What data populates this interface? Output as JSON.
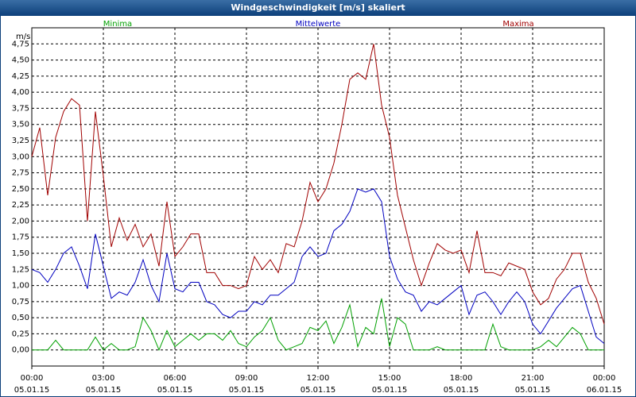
{
  "chart_data": {
    "type": "line",
    "title": "Windgeschwindigkeit [m/s] skaliert",
    "y_unit": "m/s",
    "x": [
      0,
      20,
      40,
      60,
      80,
      100,
      120,
      140,
      160,
      180,
      200,
      220,
      240,
      260,
      280,
      300,
      320,
      340,
      360,
      380,
      400,
      420,
      440,
      460,
      480,
      500,
      520,
      540,
      560,
      580,
      600,
      620,
      640,
      660,
      680,
      700,
      720,
      740,
      760,
      780,
      800,
      820,
      840,
      860,
      880,
      900,
      920,
      940,
      960,
      980,
      1000,
      1020,
      1040,
      1060,
      1080,
      1100,
      1120,
      1140,
      1160,
      1180,
      1200,
      1220,
      1240,
      1260,
      1280,
      1300,
      1320,
      1340,
      1360,
      1380,
      1400,
      1420,
      1440
    ],
    "series": [
      {
        "name": "Minima",
        "color": "#00a000",
        "values": [
          0,
          0,
          0,
          0.15,
          0,
          0,
          0,
          0,
          0.2,
          0,
          0.1,
          0,
          0,
          0.05,
          0.5,
          0.3,
          0,
          0.3,
          0.05,
          0.15,
          0.25,
          0.15,
          0.25,
          0.25,
          0.15,
          0.3,
          0.1,
          0.05,
          0.2,
          0.3,
          0.5,
          0.15,
          0,
          0.05,
          0.1,
          0.35,
          0.3,
          0.45,
          0.1,
          0.35,
          0.7,
          0.05,
          0.35,
          0.25,
          0.8,
          0.05,
          0.5,
          0.4,
          0,
          0,
          0,
          0.05,
          0,
          0,
          0,
          0,
          0,
          0,
          0.4,
          0.05,
          0,
          0,
          0,
          0,
          0.05,
          0.15,
          0.05,
          0.2,
          0.35,
          0.25,
          0,
          0,
          0
        ]
      },
      {
        "name": "Mittelwerte",
        "color": "#0000c0",
        "values": [
          1.25,
          1.2,
          1.05,
          1.25,
          1.5,
          1.6,
          1.3,
          0.95,
          1.8,
          1.3,
          0.8,
          0.9,
          0.85,
          1.05,
          1.4,
          1.0,
          0.75,
          1.5,
          0.95,
          0.9,
          1.05,
          1.05,
          0.75,
          0.7,
          0.55,
          0.5,
          0.6,
          0.6,
          0.75,
          0.7,
          0.85,
          0.85,
          0.95,
          1.05,
          1.45,
          1.6,
          1.45,
          1.5,
          1.85,
          1.95,
          2.15,
          2.5,
          2.45,
          2.5,
          2.3,
          1.45,
          1.1,
          0.9,
          0.85,
          0.6,
          0.75,
          0.7,
          0.8,
          0.9,
          1.0,
          0.55,
          0.85,
          0.9,
          0.75,
          0.55,
          0.75,
          0.9,
          0.75,
          0.4,
          0.25,
          0.45,
          0.65,
          0.8,
          0.95,
          1.0,
          0.6,
          0.2,
          0.1
        ]
      },
      {
        "name": "Maxima",
        "color": "#a00000",
        "values": [
          3.0,
          3.45,
          2.4,
          3.3,
          3.7,
          3.9,
          3.8,
          2.0,
          3.7,
          2.7,
          1.6,
          2.05,
          1.7,
          1.95,
          1.6,
          1.8,
          1.3,
          2.3,
          1.45,
          1.6,
          1.8,
          1.8,
          1.2,
          1.2,
          1.0,
          1.0,
          0.95,
          1.0,
          1.45,
          1.25,
          1.4,
          1.2,
          1.65,
          1.6,
          2.0,
          2.6,
          2.3,
          2.5,
          2.9,
          3.5,
          4.2,
          4.3,
          4.2,
          4.75,
          3.8,
          3.3,
          2.4,
          1.9,
          1.4,
          1.0,
          1.35,
          1.65,
          1.55,
          1.5,
          1.55,
          1.2,
          1.85,
          1.2,
          1.2,
          1.15,
          1.35,
          1.3,
          1.25,
          0.9,
          0.7,
          0.8,
          1.1,
          1.25,
          1.5,
          1.5,
          1.05,
          0.8,
          0.4
        ]
      }
    ],
    "xlim": [
      0,
      1440
    ],
    "xticks": [
      {
        "value": 0,
        "label": "00:00"
      },
      {
        "value": 180,
        "label": "03:00"
      },
      {
        "value": 360,
        "label": "06:00"
      },
      {
        "value": 540,
        "label": "09:00"
      },
      {
        "value": 720,
        "label": "12:00"
      },
      {
        "value": 900,
        "label": "15:00"
      },
      {
        "value": 1080,
        "label": "18:00"
      },
      {
        "value": 1260,
        "label": "21:00"
      },
      {
        "value": 1440,
        "label": "00:00"
      }
    ],
    "xtick_dates": [
      "05.01.15",
      "05.01.15",
      "05.01.15",
      "05.01.15",
      "05.01.15",
      "05.01.15",
      "05.01.15",
      "05.01.15",
      "06.01.15"
    ],
    "ylim": [
      -0.25,
      5.0
    ],
    "yticks": [
      {
        "value": 0,
        "label": "0,00"
      },
      {
        "value": 0.25,
        "label": "0,25"
      },
      {
        "value": 0.5,
        "label": "0,50"
      },
      {
        "value": 0.75,
        "label": "0,75"
      },
      {
        "value": 1,
        "label": "1,00"
      },
      {
        "value": 1.25,
        "label": "1,25"
      },
      {
        "value": 1.5,
        "label": "1,50"
      },
      {
        "value": 1.75,
        "label": "1,75"
      },
      {
        "value": 2,
        "label": "2,00"
      },
      {
        "value": 2.25,
        "label": "2,25"
      },
      {
        "value": 2.5,
        "label": "2,50"
      },
      {
        "value": 2.75,
        "label": "2,75"
      },
      {
        "value": 3,
        "label": "3,00"
      },
      {
        "value": 3.25,
        "label": "3,25"
      },
      {
        "value": 3.5,
        "label": "3,50"
      },
      {
        "value": 3.75,
        "label": "3,75"
      },
      {
        "value": 4,
        "label": "4,00"
      },
      {
        "value": 4.25,
        "label": "4,25"
      },
      {
        "value": 4.5,
        "label": "4,50"
      },
      {
        "value": 4.75,
        "label": "4,75"
      }
    ],
    "grid": true
  }
}
